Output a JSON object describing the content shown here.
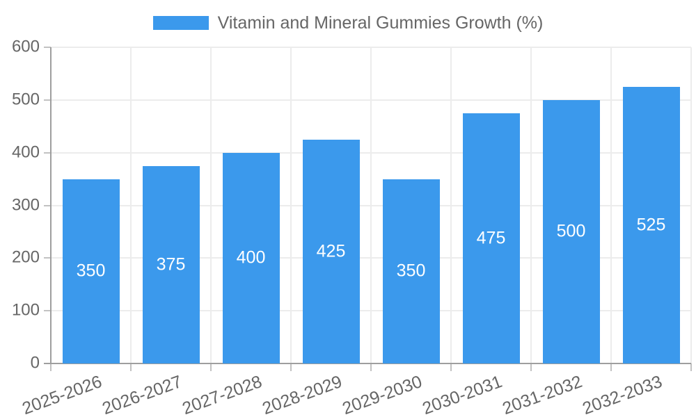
{
  "legend": {
    "label": "Vitamin and Mineral Gummies Growth (%)"
  },
  "chart_data": {
    "type": "bar",
    "title": "Vitamin and Mineral Gummies Growth (%)",
    "series_name": "Vitamin and Mineral Gummies Growth (%)",
    "categories": [
      "2025-2026",
      "2026-2027",
      "2027-2028",
      "2028-2029",
      "2029-2030",
      "2030-2031",
      "2031-2032",
      "2032-2033"
    ],
    "values": [
      350,
      375,
      400,
      425,
      350,
      475,
      500,
      525
    ],
    "value_labels": [
      "350",
      "375",
      "400",
      "425",
      "350",
      "475",
      "500",
      "525"
    ],
    "ytick_labels": [
      "0",
      "100",
      "200",
      "300",
      "400",
      "500",
      "600"
    ],
    "xlabel": "",
    "ylabel": "",
    "ylim": [
      0,
      600
    ],
    "ytick_step": 100,
    "grid": true,
    "legend_position": "top-center",
    "value_label_position": "inside-middle",
    "colors": {
      "bar": "#3B99EC",
      "value_label": "#FFFFFF",
      "tick_text": "#666666",
      "grid_line": "#ECECEC",
      "axis_line": "#9E9E9E",
      "tick_mark": "#C2C2C2",
      "background": "#FFFFFF"
    }
  }
}
